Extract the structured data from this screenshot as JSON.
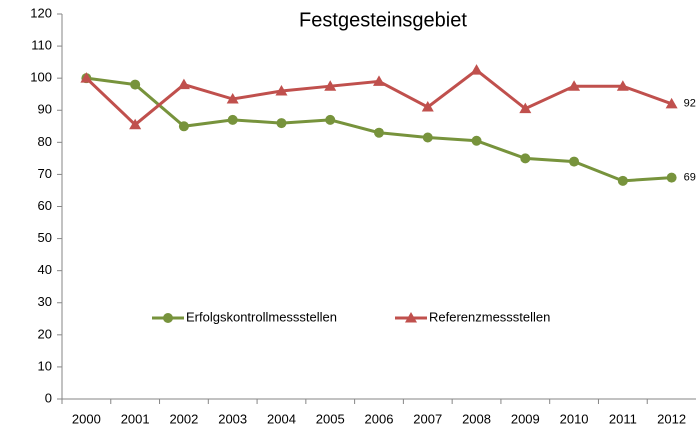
{
  "chart_data": {
    "type": "line",
    "title": "Festgesteinsgebiet",
    "categories": [
      "2000",
      "2001",
      "2002",
      "2003",
      "2004",
      "2005",
      "2006",
      "2007",
      "2008",
      "2009",
      "2010",
      "2011",
      "2012"
    ],
    "series": [
      {
        "name": "Erfolgskontrollmessstellen",
        "color": "#77933c",
        "marker": "circle",
        "values": [
          100,
          98,
          85,
          87,
          86,
          87,
          83,
          81.5,
          80.5,
          75,
          74,
          68,
          69
        ],
        "value_labels": [
          null,
          null,
          null,
          null,
          null,
          null,
          null,
          null,
          null,
          null,
          null,
          null,
          "69"
        ]
      },
      {
        "name": "Referenzmessstellen",
        "color": "#c0504d",
        "marker": "triangle",
        "values": [
          100,
          85.5,
          98,
          93.5,
          96,
          97.5,
          99,
          91,
          102.5,
          90.5,
          97.5,
          97.5,
          92
        ],
        "value_labels": [
          null,
          null,
          null,
          null,
          null,
          null,
          null,
          null,
          null,
          null,
          null,
          null,
          "92"
        ]
      }
    ],
    "ylim": [
      0,
      120
    ],
    "yticks": [
      0,
      10,
      20,
      30,
      40,
      50,
      60,
      70,
      80,
      90,
      100,
      110,
      120
    ],
    "grid": false,
    "legend": "inside-bottom"
  }
}
